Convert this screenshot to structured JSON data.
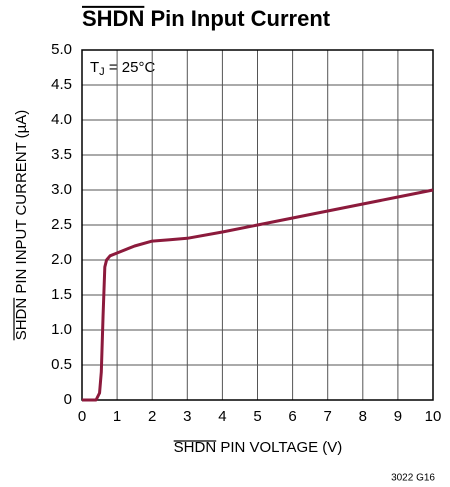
{
  "chart_data": {
    "type": "line",
    "title": "SHDN Pin Input Current",
    "annotation": {
      "main": "T",
      "sub": "J",
      "rest": " = 25°C"
    },
    "x_label": "SHDN PIN VOLTAGE (V)",
    "y_label": "SHDN PIN INPUT CURRENT (µA)",
    "footnote": "3022 G16",
    "x": [
      0,
      0.4,
      0.5,
      0.55,
      0.6,
      0.65,
      0.7,
      0.8,
      1,
      1.5,
      2,
      2.5,
      3,
      4,
      5,
      6,
      7,
      8,
      9,
      10
    ],
    "series": [
      {
        "name": "SHDN current",
        "color": "#8c1a3c",
        "values": [
          0,
          0,
          0.1,
          0.4,
          1.2,
          1.9,
          2.0,
          2.06,
          2.1,
          2.2,
          2.27,
          2.29,
          2.31,
          2.4,
          2.5,
          2.6,
          2.7,
          2.8,
          2.9,
          3.0
        ]
      }
    ],
    "xlim": [
      0,
      10
    ],
    "xticks": [
      0,
      1,
      2,
      3,
      4,
      5,
      6,
      7,
      8,
      9,
      10
    ],
    "ylim": [
      0,
      5
    ],
    "yticks": [
      0,
      0.5,
      {
        "value": 1,
        "label": "1.0"
      },
      1.5,
      {
        "value": 2,
        "label": "2.0"
      },
      2.5,
      {
        "value": 3,
        "label": "3.0"
      },
      3.5,
      {
        "value": 4,
        "label": "4.0"
      },
      4.5,
      {
        "value": 5,
        "label": "5.0"
      }
    ],
    "grid": true
  }
}
